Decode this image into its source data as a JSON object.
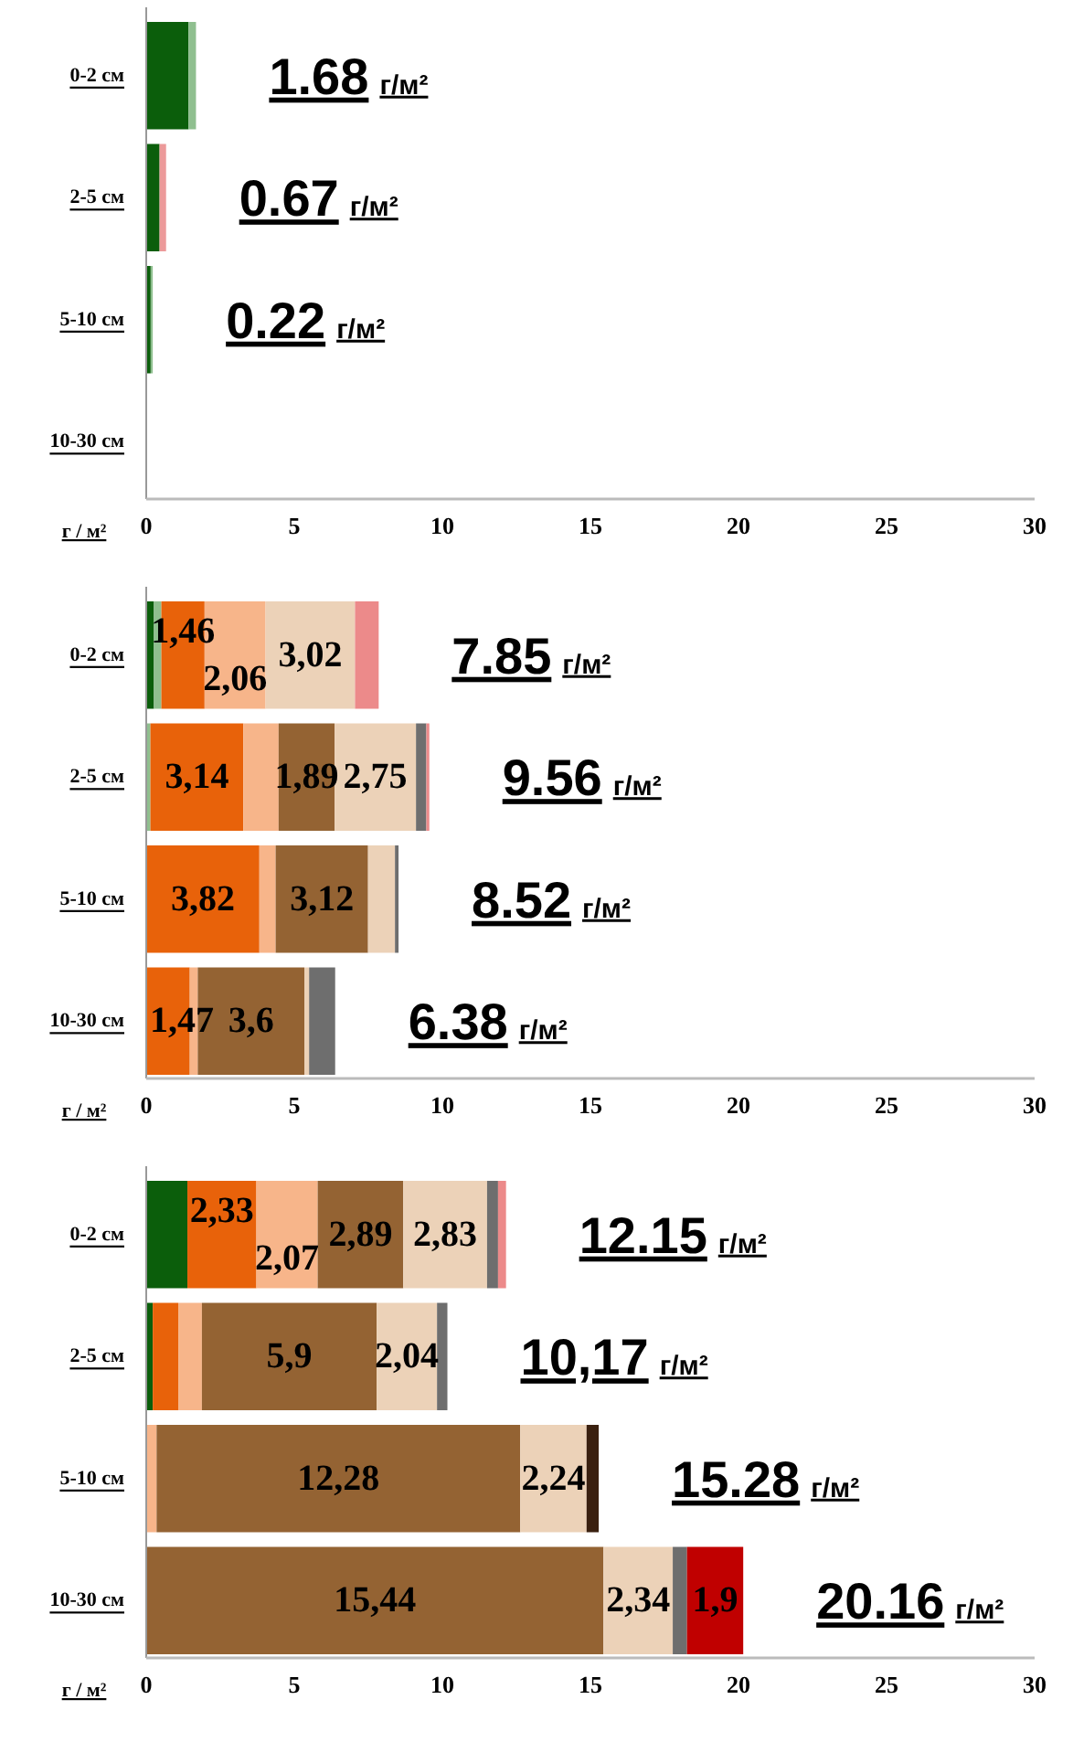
{
  "chart_data": [
    {
      "type": "bar",
      "orientation": "horizontal",
      "stacked": true,
      "categories": [
        "0-2 см",
        "2-5 см",
        "5-10 см",
        "10-30 см"
      ],
      "xlabel": "г / м²",
      "xlim": [
        0,
        30
      ],
      "xticks": [
        0,
        5,
        10,
        15,
        20,
        25,
        30
      ],
      "series": [
        {
          "color": "#0b5e0b",
          "values": [
            1.43,
            0.45,
            0.15,
            null
          ]
        },
        {
          "color": "#8fbf8f",
          "values": [
            0.25,
            null,
            0.07,
            null
          ]
        },
        {
          "color": "#ec9a9a",
          "values": [
            null,
            0.22,
            null,
            null
          ]
        }
      ],
      "totals": [
        "1.68 г/м²",
        "0.67 г/м²",
        "0.22 г/м²",
        null
      ]
    },
    {
      "type": "bar",
      "orientation": "horizontal",
      "stacked": true,
      "categories": [
        "0-2 см",
        "2-5 см",
        "5-10 см",
        "10-30 см"
      ],
      "xlabel": "г / м²",
      "xlim": [
        0,
        30
      ],
      "xticks": [
        0,
        5,
        10,
        15,
        20,
        25,
        30
      ],
      "series": [
        {
          "color": "#0b5e0b",
          "values": [
            0.26,
            null,
            null,
            null
          ]
        },
        {
          "color": "#8fbf8f",
          "values": [
            0.25,
            0.14,
            null,
            null
          ]
        },
        {
          "color": "#e8620a",
          "values": [
            1.46,
            3.14,
            3.82,
            1.47
          ],
          "value_labels": [
            "1,46",
            "3,14",
            "3,82",
            "1,47"
          ]
        },
        {
          "color": "#f7b58a",
          "values": [
            2.06,
            1.19,
            0.55,
            0.27
          ],
          "value_labels": [
            "2,06",
            null,
            null,
            null
          ]
        },
        {
          "color": "#946333",
          "values": [
            null,
            1.89,
            3.12,
            3.6
          ],
          "value_labels": [
            null,
            "1,89",
            "3,12",
            "3,6"
          ]
        },
        {
          "color": "#ecd2b8",
          "values": [
            3.02,
            2.75,
            0.91,
            0.16
          ],
          "value_labels": [
            "3,02",
            "2,75",
            null,
            null
          ]
        },
        {
          "color": "#6e6e6e",
          "values": [
            null,
            0.35,
            0.12,
            0.88
          ]
        },
        {
          "color": "#ec8a8a",
          "values": [
            0.8,
            0.1,
            null,
            null
          ]
        }
      ],
      "totals": [
        "7.85 г/м²",
        "9.56 г/м²",
        "8.52 г/м²",
        "6.38 г/м²"
      ]
    },
    {
      "type": "bar",
      "orientation": "horizontal",
      "stacked": true,
      "categories": [
        "0-2 см",
        "2-5 см",
        "5-10 см",
        "10-30 см"
      ],
      "xlabel": "г / м²",
      "xlim": [
        0,
        30
      ],
      "xticks": [
        0,
        5,
        10,
        15,
        20,
        25,
        30
      ],
      "series": [
        {
          "color": "#0b5e0b",
          "values": [
            1.39,
            0.22,
            null,
            null
          ]
        },
        {
          "color": "#e8620a",
          "values": [
            2.33,
            0.86,
            null,
            null
          ],
          "value_labels": [
            "2,33",
            null,
            null,
            null
          ]
        },
        {
          "color": "#f7b58a",
          "values": [
            2.07,
            0.8,
            0.35,
            null
          ],
          "value_labels": [
            "2,07",
            null,
            null,
            null
          ]
        },
        {
          "color": "#946333",
          "values": [
            2.89,
            5.9,
            12.28,
            15.44
          ],
          "value_labels": [
            "2,89",
            "5,9",
            "12,28",
            "15,44"
          ]
        },
        {
          "color": "#ecd2b8",
          "values": [
            2.83,
            2.04,
            2.24,
            2.34
          ],
          "value_labels": [
            "2,83",
            "2,04",
            "2,24",
            "2,34"
          ]
        },
        {
          "color": "#6e6e6e",
          "values": [
            0.37,
            0.35,
            null,
            0.48
          ]
        },
        {
          "color": "#ec8a8a",
          "values": [
            0.27,
            null,
            null,
            null
          ]
        },
        {
          "color": "#3a2010",
          "values": [
            null,
            null,
            0.41,
            null
          ]
        },
        {
          "color": "#c00000",
          "values": [
            null,
            null,
            null,
            1.9
          ],
          "value_labels": [
            null,
            null,
            null,
            "1,9"
          ]
        }
      ],
      "totals": [
        "12.15 г/м²",
        "10,17 г/м²",
        "15.28 г/м²",
        "20.16 г/м²"
      ]
    }
  ]
}
